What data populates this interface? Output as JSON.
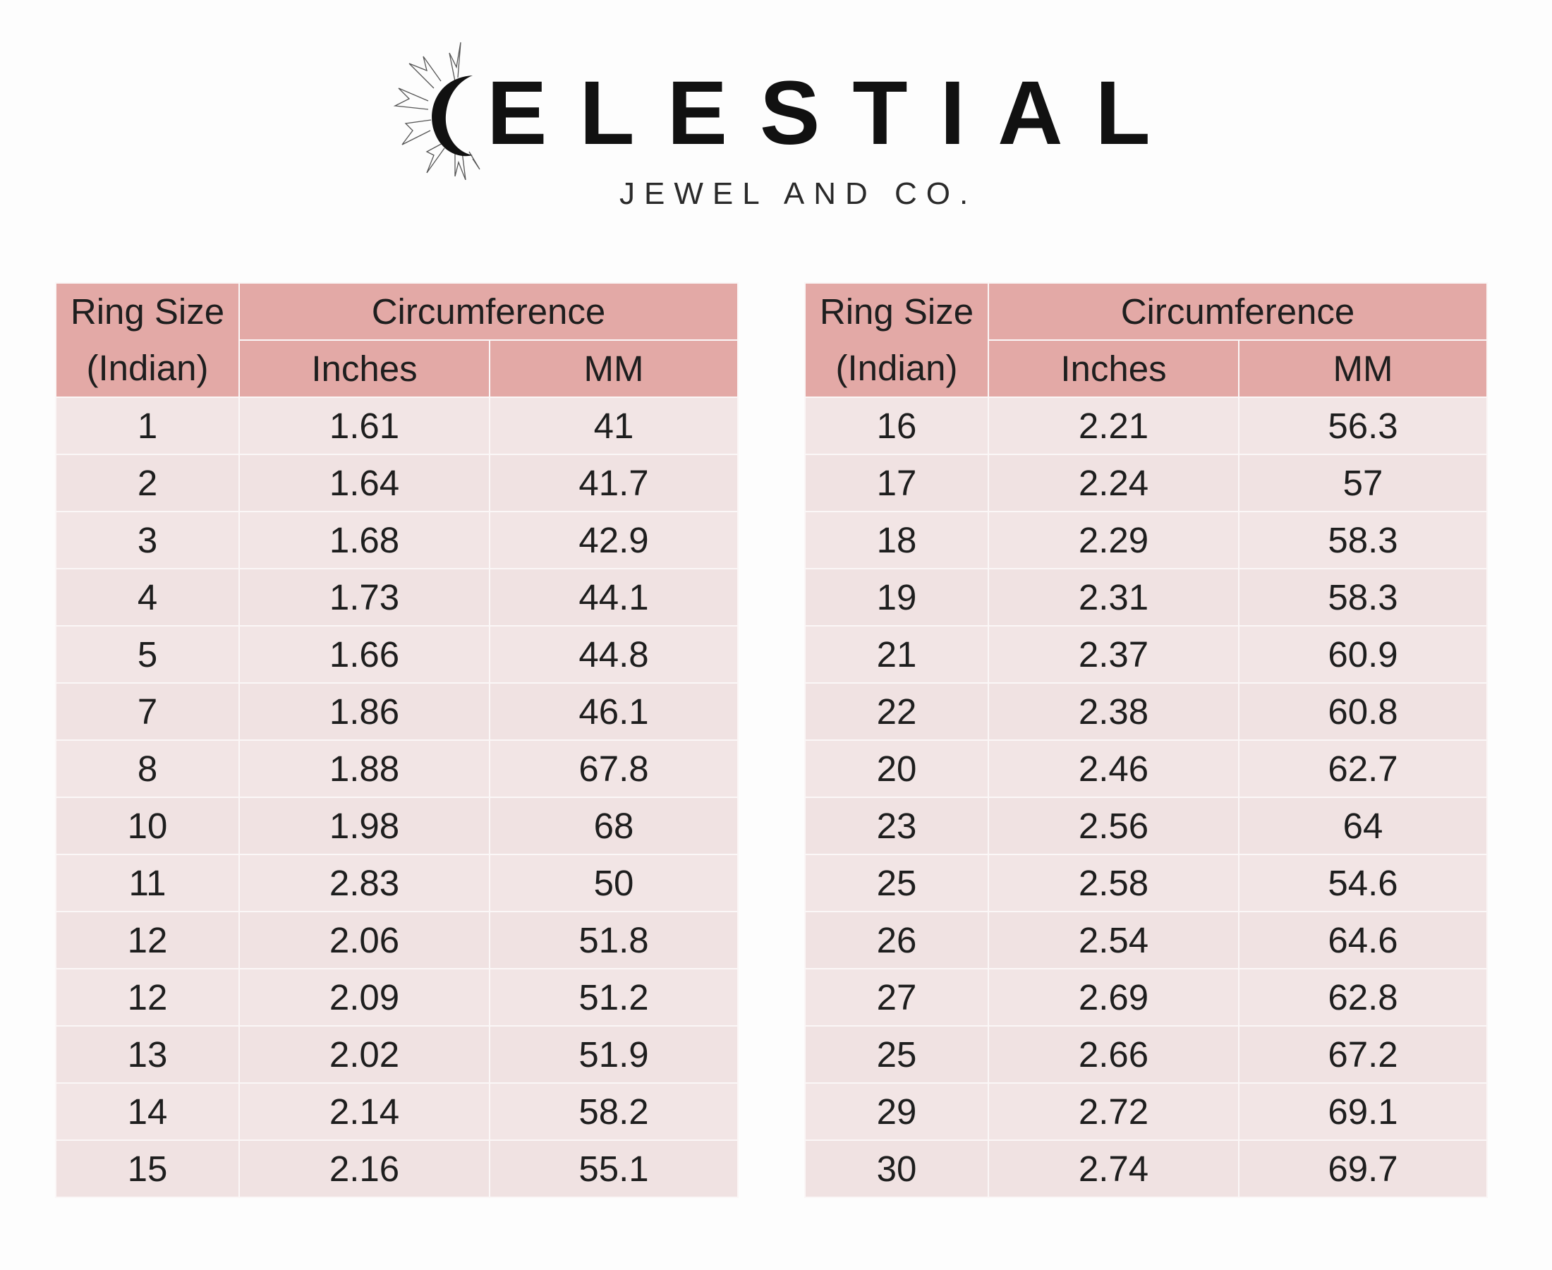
{
  "logo": {
    "wordmark": "CELESTIAL",
    "tagline": "JEWEL AND CO."
  },
  "colors": {
    "header": "#e3a9a6",
    "body": "#f2e5e5"
  },
  "header": {
    "ring_size_line1": "Ring Size",
    "ring_size_line2": "(Indian)",
    "circumference": "Circumference",
    "inches": "Inches",
    "mm": "MM"
  },
  "tables": [
    {
      "rows": [
        [
          "1",
          "1.61",
          "41"
        ],
        [
          "2",
          "1.64",
          "41.7"
        ],
        [
          "3",
          "1.68",
          "42.9"
        ],
        [
          "4",
          "1.73",
          "44.1"
        ],
        [
          "5",
          "1.66",
          "44.8"
        ],
        [
          "7",
          "1.86",
          "46.1"
        ],
        [
          "8",
          "1.88",
          "67.8"
        ],
        [
          "10",
          "1.98",
          "68"
        ],
        [
          "11",
          "2.83",
          "50"
        ],
        [
          "12",
          "2.06",
          "51.8"
        ],
        [
          "12",
          "2.09",
          "51.2"
        ],
        [
          "13",
          "2.02",
          "51.9"
        ],
        [
          "14",
          "2.14",
          "58.2"
        ],
        [
          "15",
          "2.16",
          "55.1"
        ]
      ]
    },
    {
      "rows": [
        [
          "16",
          "2.21",
          "56.3"
        ],
        [
          "17",
          "2.24",
          "57"
        ],
        [
          "18",
          "2.29",
          "58.3"
        ],
        [
          "19",
          "2.31",
          "58.3"
        ],
        [
          "21",
          "2.37",
          "60.9"
        ],
        [
          "22",
          "2.38",
          "60.8"
        ],
        [
          "20",
          "2.46",
          "62.7"
        ],
        [
          "23",
          "2.56",
          "64"
        ],
        [
          "25",
          "2.58",
          "54.6"
        ],
        [
          "26",
          "2.54",
          "64.6"
        ],
        [
          "27",
          "2.69",
          "62.8"
        ],
        [
          "25",
          "2.66",
          "67.2"
        ],
        [
          "29",
          "2.72",
          "69.1"
        ],
        [
          "30",
          "2.74",
          "69.7"
        ]
      ]
    }
  ]
}
